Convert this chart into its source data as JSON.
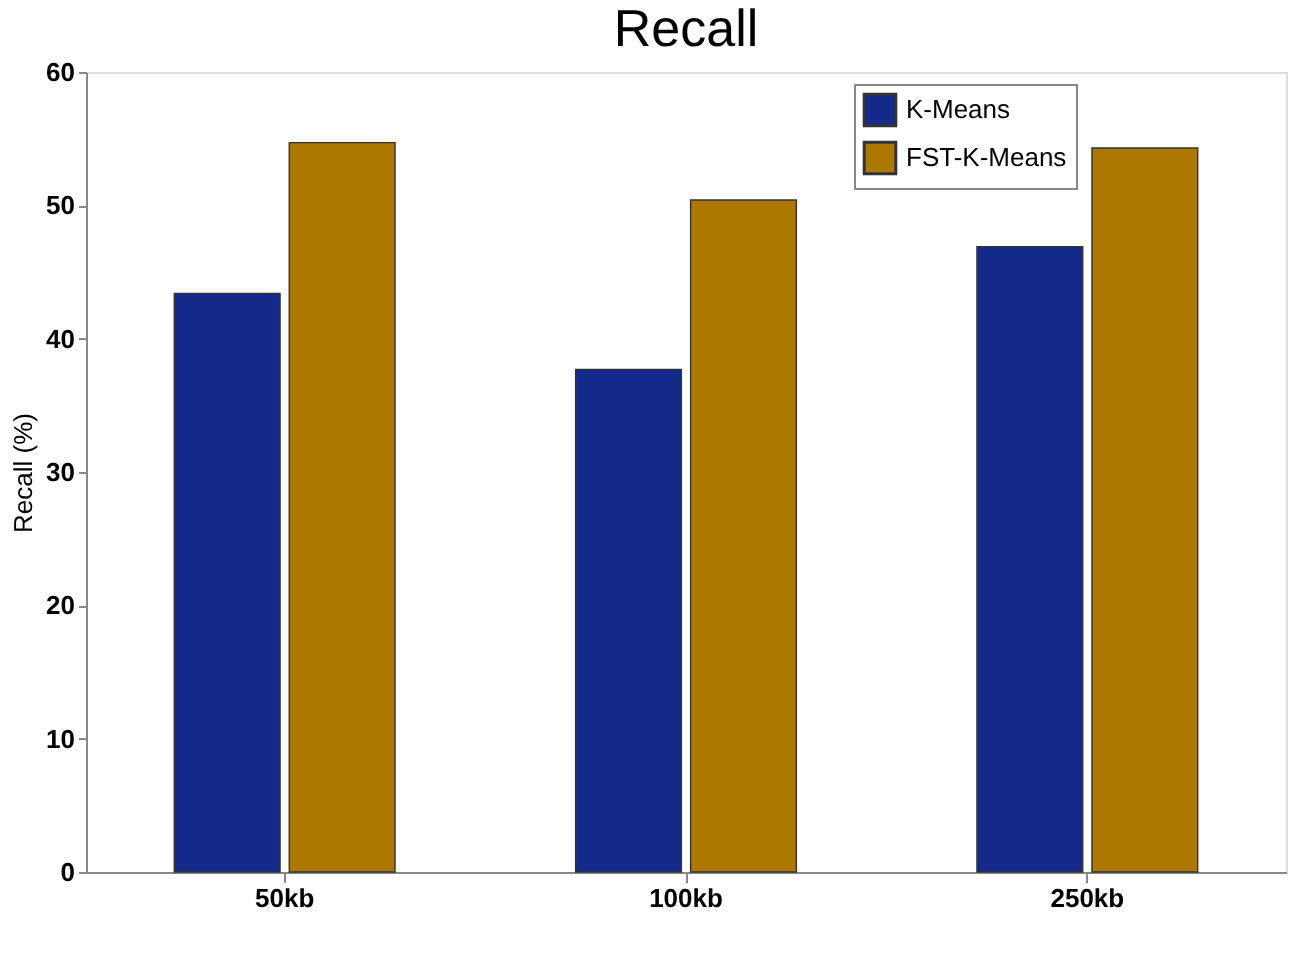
{
  "chart_data": {
    "type": "bar",
    "title": "Recall",
    "ylabel": "Recall (%)",
    "categories": [
      "50kb",
      "100kb",
      "250kb"
    ],
    "series": [
      {
        "name": "K-Means",
        "color": "#142a8a",
        "values": [
          43.4,
          37.7,
          46.9
        ]
      },
      {
        "name": "FST-K-Means",
        "color": "#ad7800",
        "values": [
          54.7,
          50.4,
          54.3
        ]
      }
    ],
    "ylim": [
      0,
      60
    ],
    "yticks": [
      0,
      10,
      20,
      30,
      40,
      50,
      60
    ],
    "grid": false,
    "legend": "top right"
  }
}
